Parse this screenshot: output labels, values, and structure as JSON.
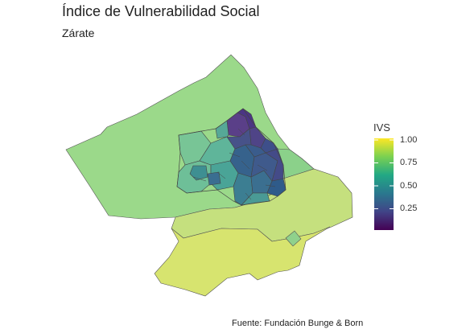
{
  "title": "Índice de Vulnerabilidad Social",
  "subtitle": "Zárate",
  "caption": "Fuente: Fundación Bunge & Born",
  "legend": {
    "title": "IVS",
    "ticks": [
      "1.00",
      "0.75",
      "0.50",
      "0.25"
    ],
    "colors": [
      "#fde725",
      "#7ad151",
      "#22a884",
      "#2a788e",
      "#414487",
      "#440154"
    ]
  },
  "regions": {
    "fill_colors": {
      "northwest_rural": "#9bd98a",
      "south_rural": "#c5e07e",
      "far_south": "#d7e46f",
      "urban_low": "#4c3f86",
      "urban_mid": "#3e7191",
      "urban_high": "#6fc09a"
    }
  }
}
